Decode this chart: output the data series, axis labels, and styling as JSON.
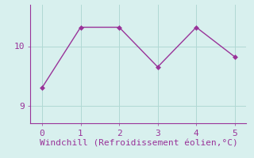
{
  "x": [
    0,
    1,
    2,
    3,
    4,
    5
  ],
  "y": [
    9.3,
    10.32,
    10.32,
    9.65,
    10.32,
    9.82
  ],
  "line_color": "#993399",
  "marker": "D",
  "marker_size": 3,
  "bg_color": "#d8f0ee",
  "grid_color": "#b0d8d4",
  "xlabel": "Windchill (Refroidissement éolien,°C)",
  "xlabel_color": "#993399",
  "tick_color": "#993399",
  "spine_color": "#993399",
  "ylim": [
    8.7,
    10.7
  ],
  "xlim": [
    -0.3,
    5.3
  ],
  "yticks": [
    9,
    10
  ],
  "xticks": [
    0,
    1,
    2,
    3,
    4,
    5
  ],
  "xlabel_fontsize": 8,
  "tick_fontsize": 8
}
